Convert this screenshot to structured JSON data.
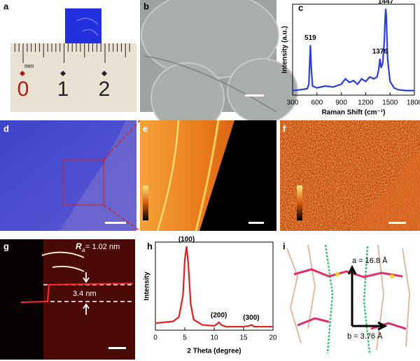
{
  "panel_labels": [
    "a",
    "b",
    "c",
    "d",
    "e",
    "f",
    "g",
    "h",
    "i"
  ],
  "panel_a": {
    "unit": "mm",
    "digits": [
      "0",
      "1",
      "2"
    ]
  },
  "panel_g": {
    "roughness_symbol": "R",
    "roughness_subscript": "a",
    "roughness_value": " = 1.02 nm",
    "step_height": "3.4 nm"
  },
  "panel_i": {
    "lattice_a": "a = 16.8 Å",
    "lattice_b": "b = 3.76 Å"
  },
  "chart_data": [
    {
      "type": "line",
      "x_label": "Raman Shift (cm⁻¹)",
      "y_label": "Intensity (a.u.)",
      "xlim": [
        300,
        1800
      ],
      "xticks": [
        300,
        600,
        900,
        1200,
        1500,
        1800
      ],
      "ylim": [
        0,
        1
      ],
      "color": "#2b3fd6",
      "x": [
        300,
        400,
        480,
        500,
        510,
        519,
        530,
        545,
        600,
        700,
        800,
        900,
        950,
        1000,
        1050,
        1100,
        1150,
        1200,
        1250,
        1300,
        1340,
        1360,
        1376,
        1390,
        1410,
        1430,
        1440,
        1447,
        1455,
        1470,
        1500,
        1550,
        1600,
        1700,
        1800
      ],
      "values": [
        0.05,
        0.06,
        0.07,
        0.12,
        0.35,
        0.55,
        0.3,
        0.1,
        0.08,
        0.1,
        0.09,
        0.12,
        0.18,
        0.14,
        0.16,
        0.12,
        0.18,
        0.15,
        0.2,
        0.18,
        0.2,
        0.28,
        0.4,
        0.3,
        0.35,
        0.6,
        0.85,
        0.95,
        0.85,
        0.4,
        0.15,
        0.08,
        0.06,
        0.05,
        0.05
      ],
      "annotations": [
        {
          "x": 519,
          "text": "519"
        },
        {
          "x": 1376,
          "text": "1376"
        },
        {
          "x": 1447,
          "text": "1447"
        }
      ]
    },
    {
      "type": "line",
      "x_label": "2 Theta (degree)",
      "y_label": "Intensity",
      "xlim": [
        0,
        20
      ],
      "xticks": [
        0,
        5,
        10,
        15,
        20
      ],
      "ylim": [
        0,
        1
      ],
      "color": "#e0201e",
      "x": [
        0,
        3,
        4,
        4.7,
        5.0,
        5.3,
        5.6,
        6,
        6.5,
        8,
        10,
        10.5,
        10.8,
        11.2,
        12,
        15,
        16,
        16.3,
        16.8,
        20
      ],
      "values": [
        0.08,
        0.1,
        0.15,
        0.4,
        0.8,
        0.95,
        0.75,
        0.3,
        0.12,
        0.06,
        0.05,
        0.07,
        0.09,
        0.06,
        0.04,
        0.04,
        0.05,
        0.06,
        0.04,
        0.04
      ],
      "annotations": [
        {
          "x": 5.3,
          "text": "(100)"
        },
        {
          "x": 10.8,
          "text": "(200)"
        },
        {
          "x": 16.3,
          "text": "(300)"
        }
      ]
    }
  ]
}
